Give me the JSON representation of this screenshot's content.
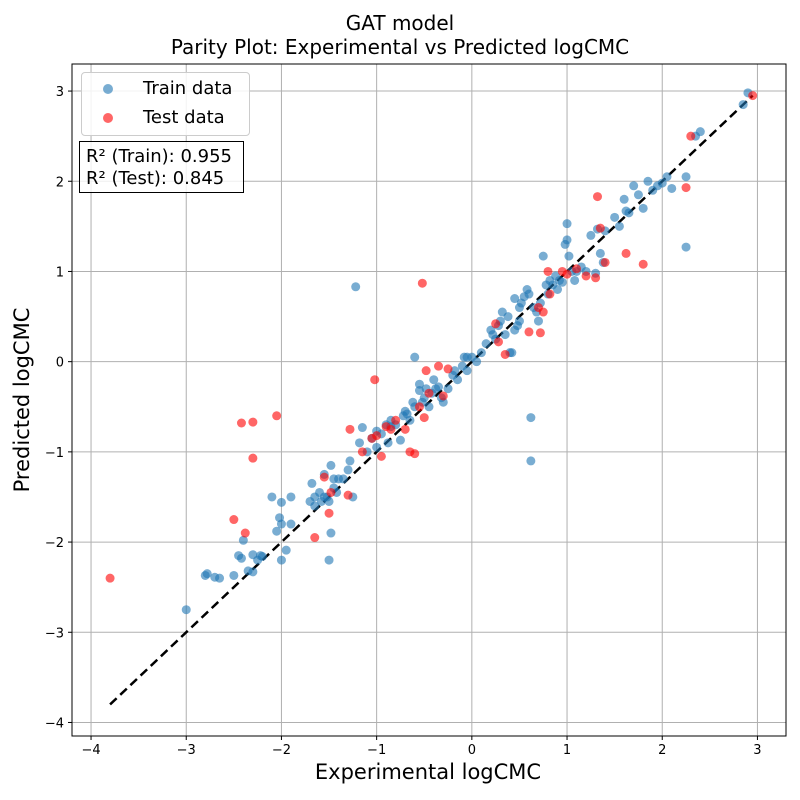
{
  "chart_data": {
    "type": "scatter",
    "title": "GAT model",
    "subtitle": "Parity Plot: Experimental vs Predicted logCMC",
    "xlabel": "Experimental logCMC",
    "ylabel": "Predicted logCMC",
    "xlim": [
      -4.2,
      3.3
    ],
    "ylim": [
      -4.15,
      3.3
    ],
    "grid": true,
    "legend_position": "top-left",
    "x_ticks": [
      -4,
      -3,
      -2,
      -1,
      0,
      1,
      2,
      3
    ],
    "y_ticks": [
      -4,
      -3,
      -2,
      -1,
      0,
      1,
      2,
      3
    ],
    "x_tick_labels": [
      "−4",
      "−3",
      "−2",
      "−1",
      "0",
      "1",
      "2",
      "3"
    ],
    "y_tick_labels": [
      "−4",
      "−3",
      "−2",
      "−1",
      "0",
      "1",
      "2",
      "3"
    ],
    "parity_line": {
      "from": [
        -3.8,
        -3.8
      ],
      "to": [
        2.95,
        2.95
      ],
      "style": "dashed",
      "color": "#000000"
    },
    "annotation": {
      "line1": "R² (Train): 0.955",
      "line2": "R² (Test): 0.845"
    },
    "series": [
      {
        "name": "Train data",
        "color": "#1f77b4",
        "points": [
          [
            -3.0,
            -2.75
          ],
          [
            -2.8,
            -2.37
          ],
          [
            -2.78,
            -2.35
          ],
          [
            -2.7,
            -2.39
          ],
          [
            -2.65,
            -2.4
          ],
          [
            -2.5,
            -2.37
          ],
          [
            -2.45,
            -2.15
          ],
          [
            -2.42,
            -2.18
          ],
          [
            -2.4,
            -1.98
          ],
          [
            -2.35,
            -2.32
          ],
          [
            -2.3,
            -2.14
          ],
          [
            -2.3,
            -2.33
          ],
          [
            -2.25,
            -2.2
          ],
          [
            -2.22,
            -2.15
          ],
          [
            -2.2,
            -2.16
          ],
          [
            -2.1,
            -1.5
          ],
          [
            -2.05,
            -1.88
          ],
          [
            -2.02,
            -1.73
          ],
          [
            -2.0,
            -1.56
          ],
          [
            -2.0,
            -1.8
          ],
          [
            -2.0,
            -2.2
          ],
          [
            -1.95,
            -2.09
          ],
          [
            -1.9,
            -1.8
          ],
          [
            -1.9,
            -1.5
          ],
          [
            -1.7,
            -1.55
          ],
          [
            -1.68,
            -1.35
          ],
          [
            -1.65,
            -1.5
          ],
          [
            -1.65,
            -1.6
          ],
          [
            -1.6,
            -1.45
          ],
          [
            -1.58,
            -1.55
          ],
          [
            -1.55,
            -1.5
          ],
          [
            -1.55,
            -1.25
          ],
          [
            -1.52,
            -1.5
          ],
          [
            -1.5,
            -2.2
          ],
          [
            -1.5,
            -1.55
          ],
          [
            -1.48,
            -1.9
          ],
          [
            -1.48,
            -1.15
          ],
          [
            -1.45,
            -1.4
          ],
          [
            -1.45,
            -1.3
          ],
          [
            -1.42,
            -1.45
          ],
          [
            -1.4,
            -1.3
          ],
          [
            -1.35,
            -1.3
          ],
          [
            -1.3,
            -1.2
          ],
          [
            -1.28,
            -1.1
          ],
          [
            -1.25,
            -1.5
          ],
          [
            -1.22,
            0.83
          ],
          [
            -1.18,
            -0.9
          ],
          [
            -1.15,
            -0.73
          ],
          [
            -1.1,
            -1.0
          ],
          [
            -1.05,
            -0.85
          ],
          [
            -1.0,
            -0.95
          ],
          [
            -1.0,
            -0.77
          ],
          [
            -0.95,
            -0.8
          ],
          [
            -0.9,
            -0.7
          ],
          [
            -0.88,
            -0.9
          ],
          [
            -0.85,
            -0.65
          ],
          [
            -0.85,
            -0.72
          ],
          [
            -0.8,
            -0.7
          ],
          [
            -0.75,
            -0.87
          ],
          [
            -0.72,
            -0.6
          ],
          [
            -0.7,
            -0.55
          ],
          [
            -0.68,
            -0.58
          ],
          [
            -0.65,
            -0.65
          ],
          [
            -0.62,
            -0.45
          ],
          [
            -0.6,
            0.05
          ],
          [
            -0.6,
            -0.5
          ],
          [
            -0.55,
            -0.25
          ],
          [
            -0.55,
            -0.32
          ],
          [
            -0.52,
            -0.45
          ],
          [
            -0.5,
            -0.4
          ],
          [
            -0.48,
            -0.3
          ],
          [
            -0.45,
            -0.5
          ],
          [
            -0.42,
            -0.35
          ],
          [
            -0.4,
            -0.2
          ],
          [
            -0.38,
            -0.3
          ],
          [
            -0.35,
            -0.28
          ],
          [
            -0.32,
            -0.4
          ],
          [
            -0.3,
            -0.45
          ],
          [
            -0.25,
            -0.3
          ],
          [
            -0.2,
            -0.15
          ],
          [
            -0.18,
            -0.1
          ],
          [
            -0.15,
            -0.2
          ],
          [
            -0.1,
            -0.05
          ],
          [
            -0.08,
            0.05
          ],
          [
            -0.05,
            -0.1
          ],
          [
            -0.05,
            0.05
          ],
          [
            0.0,
            0.05
          ],
          [
            0.05,
            0.0
          ],
          [
            0.1,
            0.1
          ],
          [
            0.15,
            0.2
          ],
          [
            0.2,
            0.35
          ],
          [
            0.22,
            0.3
          ],
          [
            0.25,
            0.25
          ],
          [
            0.28,
            0.4
          ],
          [
            0.3,
            0.45
          ],
          [
            0.32,
            0.55
          ],
          [
            0.35,
            0.3
          ],
          [
            0.38,
            0.5
          ],
          [
            0.4,
            0.1
          ],
          [
            0.42,
            0.1
          ],
          [
            0.45,
            0.35
          ],
          [
            0.45,
            0.7
          ],
          [
            0.48,
            0.4
          ],
          [
            0.5,
            0.45
          ],
          [
            0.5,
            0.6
          ],
          [
            0.52,
            0.65
          ],
          [
            0.55,
            0.72
          ],
          [
            0.58,
            0.8
          ],
          [
            0.6,
            0.75
          ],
          [
            0.62,
            -0.62
          ],
          [
            0.62,
            -1.1
          ],
          [
            0.65,
            0.6
          ],
          [
            0.68,
            0.55
          ],
          [
            0.7,
            0.45
          ],
          [
            0.72,
            0.65
          ],
          [
            0.75,
            1.17
          ],
          [
            0.78,
            0.85
          ],
          [
            0.8,
            0.75
          ],
          [
            0.82,
            0.9
          ],
          [
            0.85,
            0.85
          ],
          [
            0.88,
            0.95
          ],
          [
            0.9,
            0.8
          ],
          [
            0.92,
            0.9
          ],
          [
            0.95,
            0.88
          ],
          [
            0.98,
            1.3
          ],
          [
            1.0,
            1.53
          ],
          [
            1.0,
            1.35
          ],
          [
            1.02,
            1.17
          ],
          [
            1.05,
            1.0
          ],
          [
            1.08,
            0.9
          ],
          [
            1.1,
            1.0
          ],
          [
            1.15,
            1.05
          ],
          [
            1.2,
            1.0
          ],
          [
            1.25,
            1.4
          ],
          [
            1.3,
            0.98
          ],
          [
            1.32,
            1.47
          ],
          [
            1.35,
            1.2
          ],
          [
            1.38,
            1.1
          ],
          [
            1.4,
            1.45
          ],
          [
            1.5,
            1.6
          ],
          [
            1.55,
            1.5
          ],
          [
            1.6,
            1.8
          ],
          [
            1.62,
            1.67
          ],
          [
            1.65,
            1.65
          ],
          [
            1.7,
            1.95
          ],
          [
            1.75,
            1.85
          ],
          [
            1.8,
            1.7
          ],
          [
            1.85,
            2.0
          ],
          [
            1.9,
            1.9
          ],
          [
            1.95,
            1.95
          ],
          [
            2.0,
            1.98
          ],
          [
            2.05,
            2.05
          ],
          [
            2.1,
            1.92
          ],
          [
            2.25,
            2.05
          ],
          [
            2.25,
            1.27
          ],
          [
            2.35,
            2.5
          ],
          [
            2.4,
            2.55
          ],
          [
            2.85,
            2.85
          ],
          [
            2.9,
            2.98
          ]
        ]
      },
      {
        "name": "Test data",
        "color": "#ff0000",
        "points": [
          [
            -3.8,
            -2.4
          ],
          [
            -2.5,
            -1.75
          ],
          [
            -2.42,
            -0.68
          ],
          [
            -2.38,
            -1.9
          ],
          [
            -2.3,
            -0.67
          ],
          [
            -2.3,
            -1.07
          ],
          [
            -2.05,
            -0.6
          ],
          [
            -1.65,
            -1.95
          ],
          [
            -1.55,
            -1.28
          ],
          [
            -1.5,
            -1.68
          ],
          [
            -1.48,
            -1.45
          ],
          [
            -1.3,
            -1.48
          ],
          [
            -1.28,
            -0.75
          ],
          [
            -1.15,
            -1.0
          ],
          [
            -1.05,
            -0.85
          ],
          [
            -1.02,
            -0.2
          ],
          [
            -1.0,
            -0.82
          ],
          [
            -0.95,
            -1.05
          ],
          [
            -0.9,
            -0.72
          ],
          [
            -0.85,
            -0.75
          ],
          [
            -0.8,
            -0.65
          ],
          [
            -0.7,
            -0.75
          ],
          [
            -0.65,
            -1.0
          ],
          [
            -0.6,
            -1.02
          ],
          [
            -0.55,
            -0.5
          ],
          [
            -0.52,
            0.87
          ],
          [
            -0.5,
            -0.62
          ],
          [
            -0.48,
            -0.1
          ],
          [
            -0.45,
            -0.35
          ],
          [
            -0.35,
            -0.05
          ],
          [
            -0.3,
            -0.38
          ],
          [
            -0.25,
            -0.08
          ],
          [
            0.25,
            0.42
          ],
          [
            0.28,
            0.22
          ],
          [
            0.35,
            0.08
          ],
          [
            0.6,
            0.33
          ],
          [
            0.7,
            0.6
          ],
          [
            0.72,
            0.32
          ],
          [
            0.75,
            0.55
          ],
          [
            0.8,
            1.0
          ],
          [
            0.82,
            0.75
          ],
          [
            0.95,
            1.0
          ],
          [
            1.0,
            0.97
          ],
          [
            1.1,
            1.03
          ],
          [
            1.2,
            0.95
          ],
          [
            1.3,
            0.93
          ],
          [
            1.32,
            1.83
          ],
          [
            1.35,
            1.48
          ],
          [
            1.4,
            1.1
          ],
          [
            1.62,
            1.2
          ],
          [
            1.8,
            1.08
          ],
          [
            2.25,
            1.93
          ],
          [
            2.3,
            2.5
          ],
          [
            2.95,
            2.95
          ]
        ]
      }
    ]
  }
}
